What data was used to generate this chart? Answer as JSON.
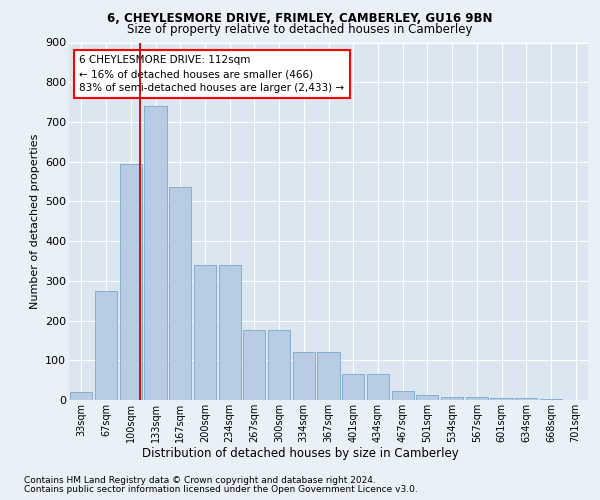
{
  "title1": "6, CHEYLESMORE DRIVE, FRIMLEY, CAMBERLEY, GU16 9BN",
  "title2": "Size of property relative to detached houses in Camberley",
  "xlabel": "Distribution of detached houses by size in Camberley",
  "ylabel": "Number of detached properties",
  "categories": [
    "33sqm",
    "67sqm",
    "100sqm",
    "133sqm",
    "167sqm",
    "200sqm",
    "234sqm",
    "267sqm",
    "300sqm",
    "334sqm",
    "367sqm",
    "401sqm",
    "434sqm",
    "467sqm",
    "501sqm",
    "534sqm",
    "567sqm",
    "601sqm",
    "634sqm",
    "668sqm",
    "701sqm"
  ],
  "values": [
    20,
    275,
    595,
    740,
    535,
    340,
    340,
    175,
    175,
    120,
    120,
    65,
    65,
    22,
    13,
    8,
    8,
    5,
    5,
    2,
    0
  ],
  "bar_color": "#b8cce4",
  "bar_edge_color": "#7ba7cc",
  "vline_color": "#cc0000",
  "annotation_line1": "6 CHEYLESMORE DRIVE: 112sqm",
  "annotation_line2": "← 16% of detached houses are smaller (466)",
  "annotation_line3": "83% of semi-detached houses are larger (2,433) →",
  "footer1": "Contains HM Land Registry data © Crown copyright and database right 2024.",
  "footer2": "Contains public sector information licensed under the Open Government Licence v3.0.",
  "ylim": [
    0,
    900
  ],
  "yticks": [
    0,
    100,
    200,
    300,
    400,
    500,
    600,
    700,
    800,
    900
  ],
  "bg_color": "#eaf0f8",
  "plot_bg_color": "#dce6f1",
  "grid_color": "#ffffff"
}
